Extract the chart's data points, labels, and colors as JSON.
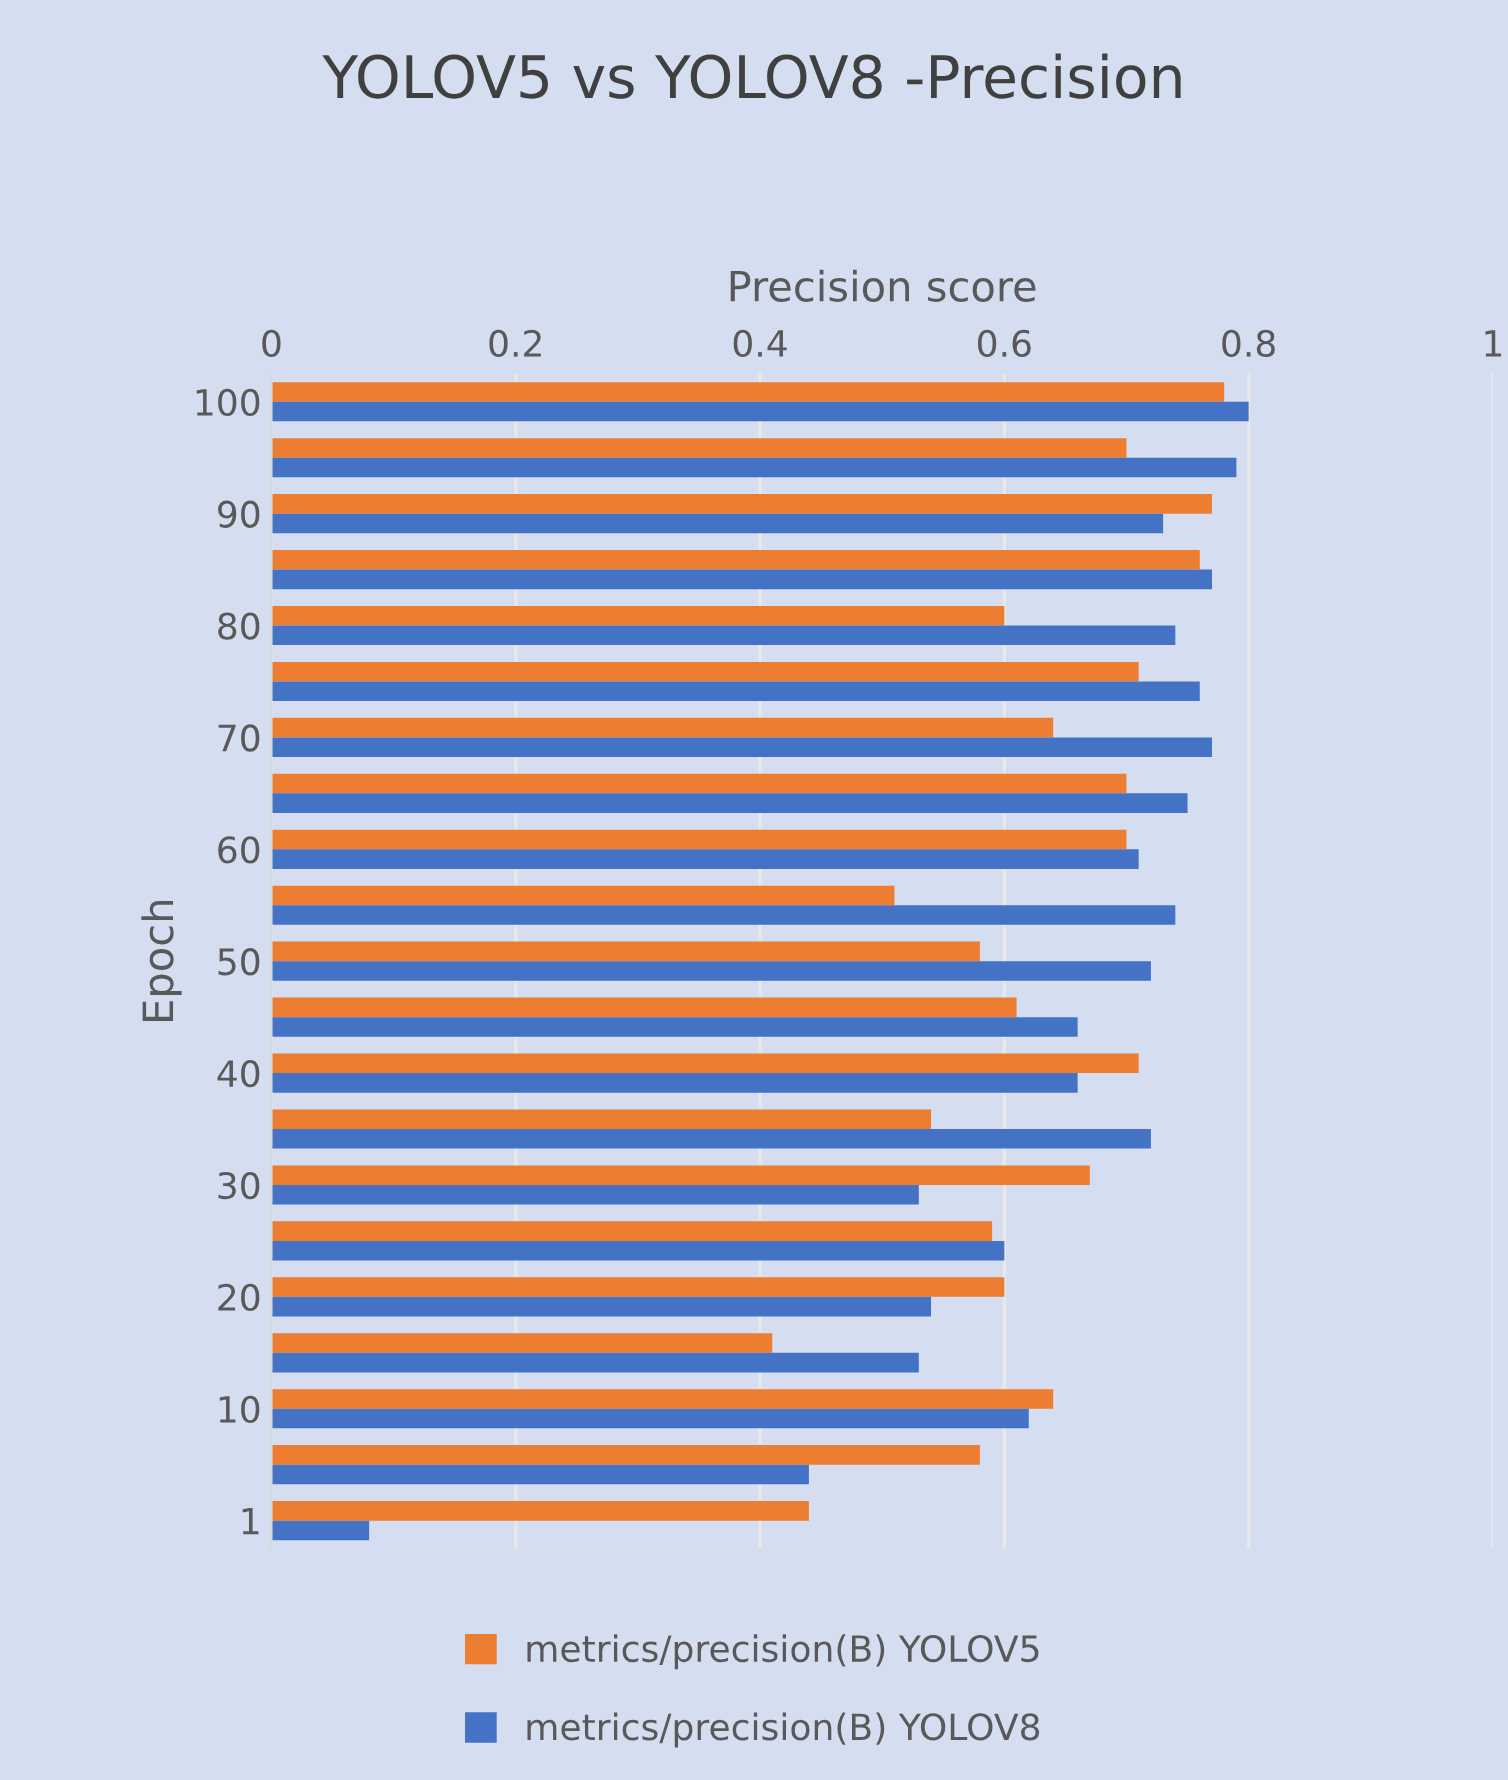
{
  "chart_data": {
    "type": "bar",
    "orientation": "horizontal",
    "title": "YOLOV5 vs YOLOV8 -Precision",
    "xlabel": "Precision score",
    "ylabel": "Epoch",
    "categories": [
      "100",
      null,
      "90",
      null,
      "80",
      null,
      "70",
      null,
      "60",
      null,
      "50",
      null,
      "40",
      null,
      "30",
      null,
      "20",
      null,
      "10",
      null,
      "1"
    ],
    "series": [
      {
        "name": "metrics/precision(B) YOLOV5",
        "color": "#ed7d31",
        "values": [
          0.78,
          0.7,
          0.77,
          0.76,
          0.6,
          0.71,
          0.64,
          0.7,
          0.7,
          0.51,
          0.58,
          0.61,
          0.71,
          0.54,
          0.67,
          0.59,
          0.6,
          0.41,
          0.64,
          0.58,
          0.44
        ]
      },
      {
        "name": "metrics/precision(B) YOLOV8",
        "color": "#4472c4",
        "values": [
          0.8,
          0.79,
          0.73,
          0.77,
          0.74,
          0.76,
          0.77,
          0.75,
          0.71,
          0.74,
          0.72,
          0.66,
          0.66,
          0.72,
          0.53,
          0.6,
          0.54,
          0.53,
          0.62,
          0.44,
          0.08
        ]
      }
    ],
    "xlim": [
      0,
      1
    ],
    "xticks": [
      0,
      0.2,
      0.4,
      0.6,
      0.8,
      1
    ],
    "grid": "x",
    "legend": "bottom"
  }
}
